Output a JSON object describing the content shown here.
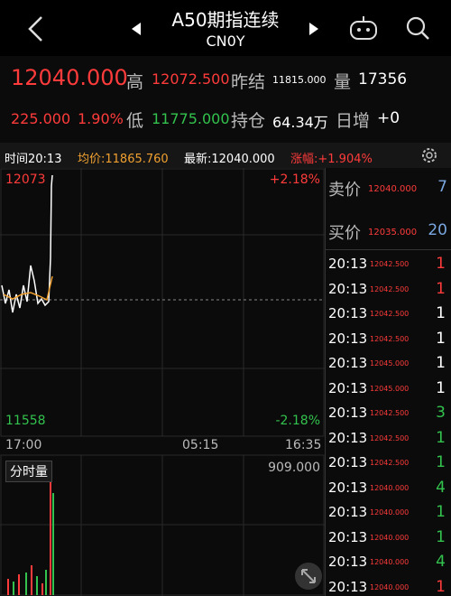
{
  "header": {
    "title": "A50期指连续",
    "code": "CN0Y"
  },
  "quote": {
    "price": "12040.000",
    "high_label": "高",
    "high": "12072.500",
    "prev_label": "昨结",
    "prev": "11815.000",
    "vol_label": "量",
    "vol": "17356",
    "change": "225.000",
    "pct": "1.90%",
    "low_label": "低",
    "low": "11775.000",
    "oi_label": "持仓",
    "oi": "64.34万",
    "daily_label": "日增",
    "daily": "+0"
  },
  "infobar": {
    "time": "时间20:13",
    "avg": "均价:11865.760",
    "latest": "最新:12040.000",
    "change": "涨幅:+1.904%"
  },
  "chart": {
    "top_left": "12073",
    "top_right": "+2.18%",
    "bottom_left": "11558",
    "bottom_right": "-2.18%",
    "x_labels": [
      "17:00",
      "05:15",
      "16:35"
    ],
    "vol_label": "分时量",
    "vol_max": "909.000"
  },
  "orderbook": {
    "ask": {
      "label": "卖价",
      "price": "12040.000",
      "qty": "7"
    },
    "bid": {
      "label": "买价",
      "price": "12035.000",
      "qty": "20"
    }
  },
  "trades": [
    {
      "time": "20:13",
      "price": "12042.500",
      "qty": "1",
      "color": "#ff3b3b"
    },
    {
      "time": "20:13",
      "price": "12042.500",
      "qty": "1",
      "color": "#ff3b3b"
    },
    {
      "time": "20:13",
      "price": "12042.500",
      "qty": "1",
      "color": "#ffffff"
    },
    {
      "time": "20:13",
      "price": "12042.500",
      "qty": "1",
      "color": "#ffffff"
    },
    {
      "time": "20:13",
      "price": "12045.000",
      "qty": "1",
      "color": "#ffffff"
    },
    {
      "time": "20:13",
      "price": "12045.000",
      "qty": "1",
      "color": "#ffffff"
    },
    {
      "time": "20:13",
      "price": "12042.500",
      "qty": "3",
      "color": "#33c24d"
    },
    {
      "time": "20:13",
      "price": "12042.500",
      "qty": "1",
      "color": "#33c24d"
    },
    {
      "time": "20:13",
      "price": "12042.500",
      "qty": "1",
      "color": "#33c24d"
    },
    {
      "time": "20:13",
      "price": "12040.000",
      "qty": "4",
      "color": "#33c24d"
    },
    {
      "time": "20:13",
      "price": "12040.000",
      "qty": "1",
      "color": "#33c24d"
    },
    {
      "time": "20:13",
      "price": "12040.000",
      "qty": "1",
      "color": "#33c24d"
    },
    {
      "time": "20:13",
      "price": "12040.000",
      "qty": "4",
      "color": "#33c24d"
    },
    {
      "time": "20:13",
      "price": "12040.000",
      "qty": "1",
      "color": "#ff3b3b"
    }
  ]
}
